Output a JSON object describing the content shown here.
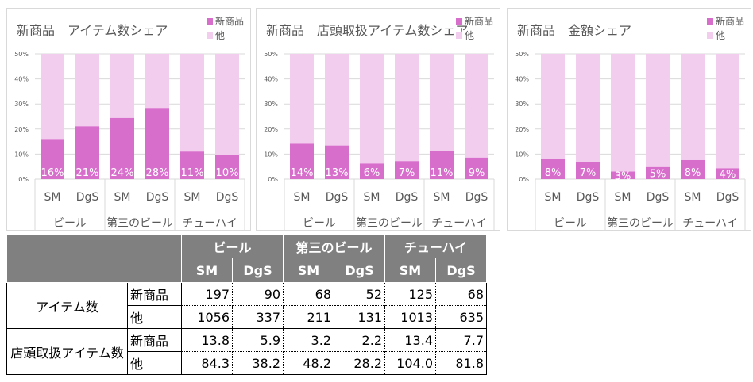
{
  "colors": {
    "new": "#d86ecc",
    "other": "#f2cdee"
  },
  "chart_data": [
    {
      "type": "bar",
      "stacked": true,
      "title": "新商品　アイテム数シェア",
      "legend": [
        "新商品",
        "他"
      ],
      "ylim": [
        0,
        50
      ],
      "yticks": [
        "0%",
        "10%",
        "20%",
        "30%",
        "40%",
        "50%"
      ],
      "groups": [
        "ビール",
        "第三のビール",
        "チューハイ"
      ],
      "categories": [
        "SM",
        "DgS",
        "SM",
        "DgS",
        "SM",
        "DgS"
      ],
      "values": [
        15.7,
        21.1,
        24.4,
        28.4,
        11.0,
        9.7
      ],
      "labels": [
        "16%",
        "21%",
        "24%",
        "28%",
        "11%",
        "10%"
      ]
    },
    {
      "type": "bar",
      "stacked": true,
      "title": "新商品　店頭取扱アイテム数シェア",
      "legend": [
        "新商品",
        "他"
      ],
      "ylim": [
        0,
        50
      ],
      "yticks": [
        "0%",
        "10%",
        "20%",
        "30%",
        "40%",
        "50%"
      ],
      "groups": [
        "ビール",
        "第三のビール",
        "チューハイ"
      ],
      "categories": [
        "SM",
        "DgS",
        "SM",
        "DgS",
        "SM",
        "DgS"
      ],
      "values": [
        14.1,
        13.4,
        6.2,
        7.2,
        11.4,
        8.6
      ],
      "labels": [
        "14%",
        "13%",
        "6%",
        "7%",
        "11%",
        "9%"
      ]
    },
    {
      "type": "bar",
      "stacked": true,
      "title": "新商品　金額シェア",
      "legend": [
        "新商品",
        "他"
      ],
      "ylim": [
        0,
        50
      ],
      "yticks": [
        "0%",
        "10%",
        "20%",
        "30%",
        "40%",
        "50%"
      ],
      "groups": [
        "ビール",
        "第三のビール",
        "チューハイ"
      ],
      "categories": [
        "SM",
        "DgS",
        "SM",
        "DgS",
        "SM",
        "DgS"
      ],
      "values": [
        8.0,
        6.8,
        3.0,
        4.8,
        7.6,
        4.3
      ],
      "labels": [
        "8%",
        "7%",
        "3%",
        "5%",
        "8%",
        "4%"
      ]
    }
  ],
  "table": {
    "groups": [
      "ビール",
      "第三のビール",
      "チューハイ"
    ],
    "subs": [
      "SM",
      "DgS",
      "SM",
      "DgS",
      "SM",
      "DgS"
    ],
    "rows": [
      {
        "label": "アイテム数",
        "sub": "新商品",
        "values": [
          "197",
          "90",
          "68",
          "52",
          "125",
          "68"
        ]
      },
      {
        "label": "",
        "sub": "他",
        "values": [
          "1056",
          "337",
          "211",
          "131",
          "1013",
          "635"
        ]
      },
      {
        "label": "店頭取扱アイテム数",
        "sub": "新商品",
        "values": [
          "13.8",
          "5.9",
          "3.2",
          "2.2",
          "13.4",
          "7.7"
        ]
      },
      {
        "label": "",
        "sub": "他",
        "values": [
          "84.3",
          "38.2",
          "48.2",
          "28.2",
          "104.0",
          "81.8"
        ]
      }
    ]
  }
}
